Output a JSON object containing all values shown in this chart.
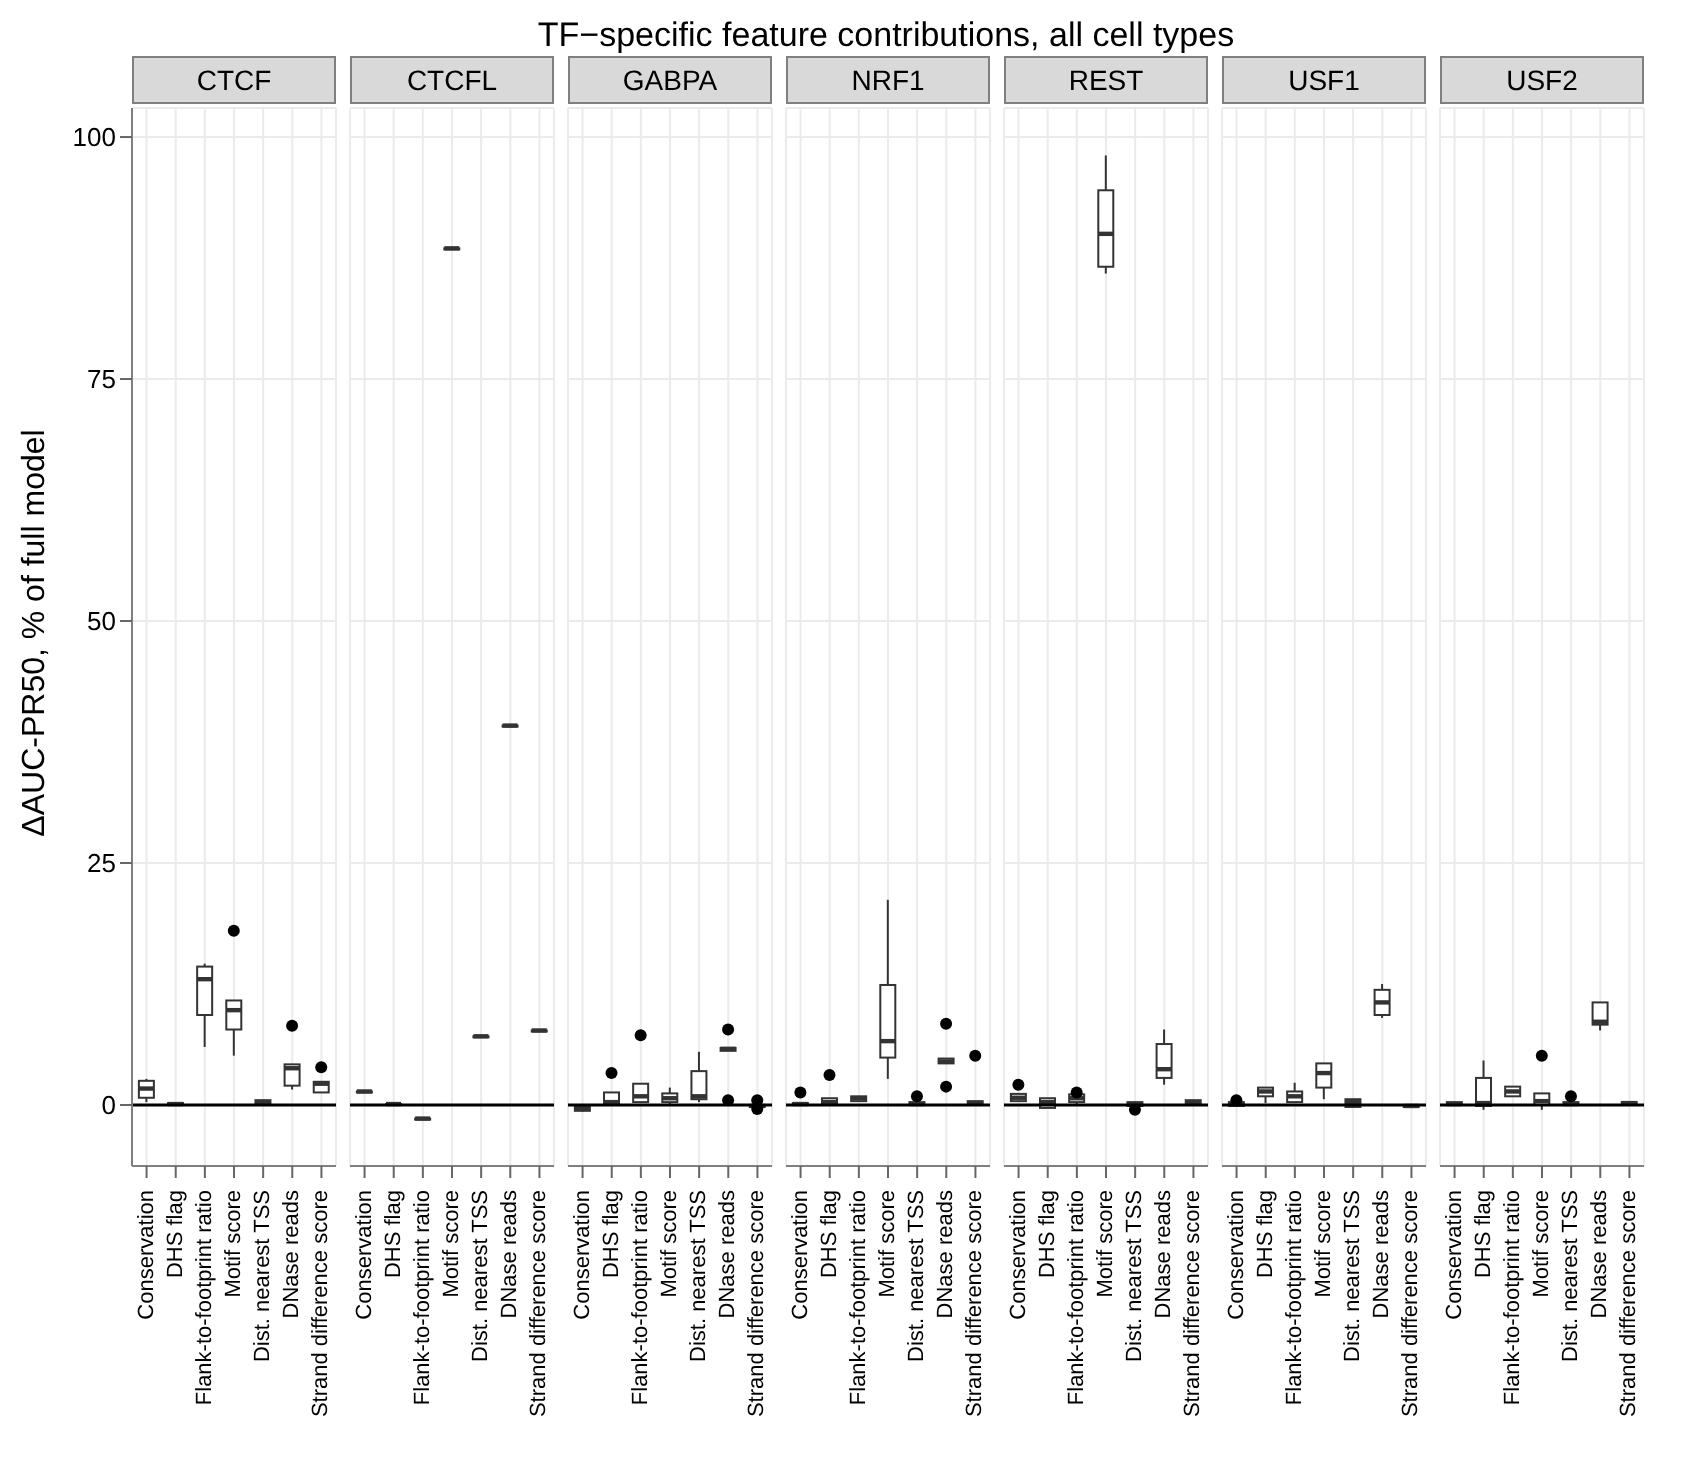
{
  "chart_data": [
    {
      "type": "box",
      "title": "CTCF",
      "ylabel": "ΔAUC-PR50, % of full model",
      "annotations": [
        "TF−specific feature contributions, all cell types"
      ],
      "categories": [
        "Conservation",
        "DHS flag",
        "Flank-to-footprint ratio",
        "Motif score",
        "Dist. nearest TSS",
        "DNase reads",
        "Strand difference score"
      ],
      "boxes": [
        {
          "low": 0.3,
          "q1": 0.75,
          "median": 1.7,
          "q3": 2.5,
          "high": 2.7
        },
        {
          "low": -0.1,
          "q1": 0,
          "median": 0.1,
          "q3": 0.2,
          "high": 0.3
        },
        {
          "low": 6,
          "q1": 9.3,
          "median": 13,
          "q3": 14.3,
          "high": 14.6
        },
        {
          "low": 5.1,
          "q1": 7.8,
          "median": 9.8,
          "q3": 10.8,
          "high": 10.8,
          "outliers": [
            18
          ]
        },
        {
          "low": 0,
          "q1": 0.1,
          "median": 0.3,
          "q3": 0.5,
          "high": 0.5
        },
        {
          "low": 1.6,
          "q1": 2,
          "median": 3.8,
          "q3": 4.2,
          "high": 4.2,
          "outliers": [
            8.2
          ]
        },
        {
          "low": 1.3,
          "q1": 1.3,
          "median": 2.2,
          "q3": 2.4,
          "high": 2.4,
          "outliers": [
            3.9
          ]
        }
      ],
      "ylim": [
        -6.3,
        103
      ],
      "yticks": [
        0,
        25,
        50,
        75,
        100
      ],
      "grid": true,
      "ref_lines": [
        {
          "axis": "y",
          "value": 0,
          "color": "#000000"
        }
      ]
    },
    {
      "type": "box",
      "title": "CTCFL",
      "categories": [
        "Conservation",
        "DHS flag",
        "Flank-to-footprint ratio",
        "Motif score",
        "Dist. nearest TSS",
        "DNase reads",
        "Strand difference score"
      ],
      "boxes": [
        {
          "low": 1.4,
          "q1": 1.4,
          "median": 1.4,
          "q3": 1.4,
          "high": 1.4
        },
        {
          "low": 0.1,
          "q1": 0.1,
          "median": 0.1,
          "q3": 0.1,
          "high": 0.1
        },
        {
          "low": -1.4,
          "q1": -1.4,
          "median": -1.4,
          "q3": -1.4,
          "high": -1.4
        },
        {
          "low": 88.5,
          "q1": 88.5,
          "median": 88.5,
          "q3": 88.5,
          "high": 88.5
        },
        {
          "low": 7.1,
          "q1": 7.1,
          "median": 7.1,
          "q3": 7.1,
          "high": 7.1
        },
        {
          "low": 39.2,
          "q1": 39.2,
          "median": 39.2,
          "q3": 39.2,
          "high": 39.2
        },
        {
          "low": 7.7,
          "q1": 7.7,
          "median": 7.7,
          "q3": 7.7,
          "high": 7.7
        }
      ],
      "ylim": [
        -6.3,
        103
      ],
      "yticks": [
        0,
        25,
        50,
        75,
        100
      ],
      "grid": true,
      "tick_labels": "x",
      "ref_lines": [
        {
          "axis": "y",
          "value": 0,
          "color": "#000000"
        }
      ]
    },
    {
      "type": "box",
      "title": "GABPA",
      "categories": [
        "Conservation",
        "DHS flag",
        "Flank-to-footprint ratio",
        "Motif score",
        "Dist. nearest TSS",
        "DNase reads",
        "Strand difference score"
      ],
      "boxes": [
        {
          "low": -0.7,
          "q1": -0.6,
          "median": -0.3,
          "q3": -0.2,
          "high": -0.1
        },
        {
          "low": 0,
          "q1": 0,
          "median": 0.3,
          "q3": 1.3,
          "high": 1.3,
          "outliers": [
            3.3
          ]
        },
        {
          "low": 0.3,
          "q1": 0.3,
          "median": 0.9,
          "q3": 2.2,
          "high": 2.2,
          "outliers": [
            7.2
          ]
        },
        {
          "low": -0.1,
          "q1": 0.3,
          "median": 0.7,
          "q3": 1.2,
          "high": 1.8
        },
        {
          "low": 0.3,
          "q1": 0.6,
          "median": 0.9,
          "q3": 3.5,
          "high": 5.5
        },
        {
          "low": 5.6,
          "q1": 5.6,
          "median": 5.8,
          "q3": 5.9,
          "high": 5.9,
          "outliers": [
            7.8,
            0.5
          ]
        },
        {
          "low": -0.3,
          "q1": -0.2,
          "median": -0.1,
          "q3": 0,
          "high": 0.1,
          "outliers": [
            0.5,
            -0.4
          ]
        }
      ],
      "ylim": [
        -6.3,
        103
      ],
      "yticks": [
        0,
        25,
        50,
        75,
        100
      ],
      "grid": true,
      "tick_labels": "x",
      "ref_lines": [
        {
          "axis": "y",
          "value": 0,
          "color": "#000000"
        }
      ]
    },
    {
      "type": "box",
      "title": "NRF1",
      "categories": [
        "Conservation",
        "DHS flag",
        "Flank-to-footprint ratio",
        "Motif score",
        "Dist. nearest TSS",
        "DNase reads",
        "Strand difference score"
      ],
      "boxes": [
        {
          "low": -0.1,
          "q1": 0,
          "median": 0.1,
          "q3": 0.2,
          "high": 0.2,
          "outliers": [
            1.3
          ]
        },
        {
          "low": 0.1,
          "q1": 0.1,
          "median": 0.3,
          "q3": 0.7,
          "high": 0.7,
          "outliers": [
            3.1
          ]
        },
        {
          "low": 0.4,
          "q1": 0.4,
          "median": 0.7,
          "q3": 0.9,
          "high": 0.9
        },
        {
          "low": 2.7,
          "q1": 4.9,
          "median": 6.6,
          "q3": 12.4,
          "high": 21.2
        },
        {
          "low": 0,
          "q1": 0,
          "median": 0.1,
          "q3": 0.3,
          "high": 0.3,
          "outliers": [
            0.9
          ]
        },
        {
          "low": 4.3,
          "q1": 4.3,
          "median": 4.5,
          "q3": 4.8,
          "high": 4.8,
          "outliers": [
            8.4,
            1.9
          ]
        },
        {
          "low": 0.1,
          "q1": 0.1,
          "median": 0.2,
          "q3": 0.4,
          "high": 0.4,
          "outliers": [
            5.1
          ]
        }
      ],
      "ylim": [
        -6.3,
        103
      ],
      "yticks": [
        0,
        25,
        50,
        75,
        100
      ],
      "grid": true,
      "tick_labels": "x",
      "ref_lines": [
        {
          "axis": "y",
          "value": 0,
          "color": "#000000"
        }
      ]
    },
    {
      "type": "box",
      "title": "REST",
      "categories": [
        "Conservation",
        "DHS flag",
        "Flank-to-footprint ratio",
        "Motif score",
        "Dist. nearest TSS",
        "DNase reads",
        "Strand difference score"
      ],
      "boxes": [
        {
          "low": 0.4,
          "q1": 0.4,
          "median": 0.75,
          "q3": 1.15,
          "high": 1.15,
          "outliers": [
            2.1
          ]
        },
        {
          "low": -0.3,
          "q1": -0.3,
          "median": 0.3,
          "q3": 0.7,
          "high": 0.7
        },
        {
          "low": -0.1,
          "q1": 0.3,
          "median": 0.7,
          "q3": 1.1,
          "high": 1.1,
          "outliers": [
            1.3
          ]
        },
        {
          "low": 85.9,
          "q1": 86.6,
          "median": 90,
          "q3": 94.5,
          "high": 98.1
        },
        {
          "low": -0.1,
          "q1": -0.1,
          "median": 0.1,
          "q3": 0.3,
          "high": 0.3,
          "outliers": [
            -0.5
          ]
        },
        {
          "low": 2.1,
          "q1": 2.8,
          "median": 3.7,
          "q3": 6.3,
          "high": 7.8
        },
        {
          "low": 0,
          "q1": 0,
          "median": 0.2,
          "q3": 0.5,
          "high": 0.5
        }
      ],
      "ylim": [
        -6.3,
        103
      ],
      "yticks": [
        0,
        25,
        50,
        75,
        100
      ],
      "grid": true,
      "tick_labels": "x",
      "ref_lines": [
        {
          "axis": "y",
          "value": 0,
          "color": "#000000"
        }
      ]
    },
    {
      "type": "box",
      "title": "USF1",
      "categories": [
        "Conservation",
        "DHS flag",
        "Flank-to-footprint ratio",
        "Motif score",
        "Dist. nearest TSS",
        "DNase reads",
        "Strand difference score"
      ],
      "boxes": [
        {
          "low": -0.1,
          "q1": -0.1,
          "median": 0.1,
          "q3": 0.3,
          "high": 0.3,
          "outliers": [
            0.5
          ]
        },
        {
          "low": 0.2,
          "q1": 0.9,
          "median": 1.4,
          "q3": 1.8,
          "high": 1.8
        },
        {
          "low": 0.3,
          "q1": 0.3,
          "median": 0.9,
          "q3": 1.4,
          "high": 2.3
        },
        {
          "low": 0.6,
          "q1": 1.8,
          "median": 3.3,
          "q3": 4.3,
          "high": 4.3
        },
        {
          "low": -0.2,
          "q1": -0.2,
          "median": 0.3,
          "q3": 0.6,
          "high": 0.6
        },
        {
          "low": 9,
          "q1": 9.3,
          "median": 10.6,
          "q3": 11.9,
          "high": 12.5
        },
        {
          "low": -0.2,
          "q1": -0.2,
          "median": -0.1,
          "q3": 0,
          "high": 0
        }
      ],
      "ylim": [
        -6.3,
        103
      ],
      "yticks": [
        0,
        25,
        50,
        75,
        100
      ],
      "grid": true,
      "tick_labels": "x",
      "ref_lines": [
        {
          "axis": "y",
          "value": 0,
          "color": "#000000"
        }
      ]
    },
    {
      "type": "box",
      "title": "USF2",
      "categories": [
        "Conservation",
        "DHS flag",
        "Flank-to-footprint ratio",
        "Motif score",
        "Dist. nearest TSS",
        "DNase reads",
        "Strand difference score"
      ],
      "boxes": [
        {
          "low": 0,
          "q1": 0,
          "median": 0.1,
          "q3": 0.3,
          "high": 0.3
        },
        {
          "low": -0.5,
          "q1": -0.1,
          "median": 0.2,
          "q3": 2.8,
          "high": 4.6
        },
        {
          "low": 0.9,
          "q1": 0.9,
          "median": 1.4,
          "q3": 1.9,
          "high": 1.9
        },
        {
          "low": -0.5,
          "q1": 0,
          "median": 0.4,
          "q3": 1.2,
          "high": 1.2,
          "outliers": [
            5.1
          ]
        },
        {
          "low": 0,
          "q1": 0,
          "median": 0.1,
          "q3": 0.3,
          "high": 0.3,
          "outliers": [
            0.9
          ]
        },
        {
          "low": 7.7,
          "q1": 8.3,
          "median": 8.6,
          "q3": 10.6,
          "high": 10.6
        },
        {
          "low": 0,
          "q1": 0.1,
          "median": 0.2,
          "q3": 0.3,
          "high": 0.3
        }
      ],
      "ylim": [
        -6.3,
        103
      ],
      "yticks": [
        0,
        25,
        50,
        75,
        100
      ],
      "grid": true,
      "tick_labels": "x",
      "ref_lines": [
        {
          "axis": "y",
          "value": 0,
          "color": "#000000"
        }
      ]
    }
  ]
}
